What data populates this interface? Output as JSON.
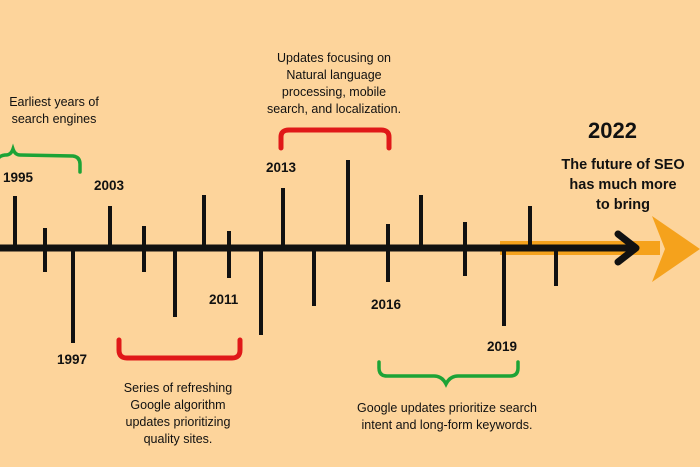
{
  "colors": {
    "background": "#FDD49B",
    "axis": "#111111",
    "arrow_tail": "#F5A21C",
    "bracket_green": "#1DA336",
    "bracket_red": "#E01818"
  },
  "years": {
    "y1995": "1995",
    "y1997": "1997",
    "y2003": "2003",
    "y2011": "2011",
    "y2013": "2013",
    "y2016": "2016",
    "y2019": "2019",
    "y2022": "2022"
  },
  "notes": {
    "earliest": [
      "Earliest years of",
      "search engines"
    ],
    "nlp": [
      "Updates focusing on",
      "Natural language",
      "processing, mobile",
      "search, and localization."
    ],
    "refresh": [
      "Series of refreshing",
      "Google  algorithm",
      "updates prioritizing",
      "quality sites."
    ],
    "intent": [
      "Google updates prioritize search",
      "intent and long-form keywords."
    ]
  },
  "future": [
    "The future of SEO",
    "has much more",
    "to bring"
  ]
}
